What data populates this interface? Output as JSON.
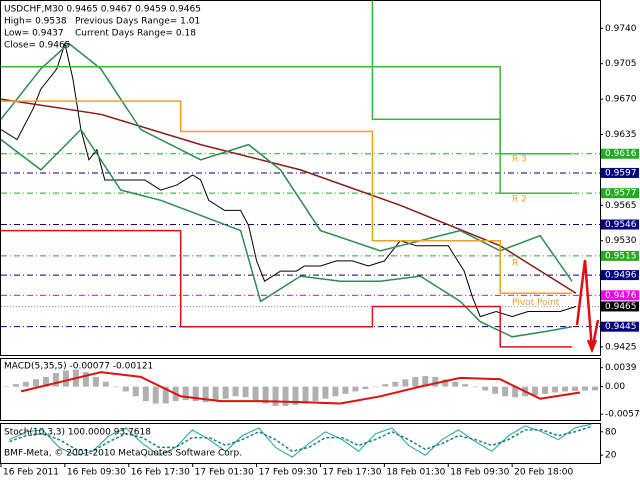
{
  "header": {
    "symbol_line": "USDCHF,M30  0.9465 0.9467 0.9459 0.9465",
    "high": "High= 0.9538",
    "prev_range": "Previous Days Range= 1.01",
    "low": "Low= 0.9437",
    "curr_range": "Current Days Range= 0.18",
    "close": "Close= 0.9465"
  },
  "footer": "BMF-Meta, © 2001-2010 MetaQuotes Software Corp.",
  "chart_data": [
    {
      "type": "line",
      "panel": "main",
      "xlim": [
        0,
        150
      ],
      "ylim": [
        0.9417,
        0.9767
      ],
      "xticks": [
        {
          "value": 0,
          "label": "16 Feb 2011"
        },
        {
          "value": 16,
          "label": "16 Feb 09:30"
        },
        {
          "value": 32,
          "label": "16 Feb 17:30"
        },
        {
          "value": 48,
          "label": "17 Feb 01:30"
        },
        {
          "value": 64,
          "label": "17 Feb 09:30"
        },
        {
          "value": 80,
          "label": "17 Feb 17:30"
        },
        {
          "value": 96,
          "label": "18 Feb 01:30"
        },
        {
          "value": 112,
          "label": "18 Feb 09:30"
        },
        {
          "value": 128,
          "label": "20 Feb 18:00"
        }
      ],
      "yticks": [
        {
          "value": 0.974,
          "label": "0.9740"
        },
        0.9705,
        {
          "value": 0.967,
          "label": "0.9670"
        },
        0.9635,
        0.9565,
        {
          "value": 0.953,
          "label": "0.9530"
        },
        0.9425
      ],
      "series": [
        {
          "color": "#000000",
          "x": [
            0,
            4,
            8,
            10,
            12,
            14,
            16,
            18,
            20,
            22,
            24,
            26,
            28,
            32,
            36,
            40,
            44,
            48,
            50,
            52,
            56,
            60,
            62,
            64,
            66,
            70,
            74,
            76,
            80,
            84,
            88,
            92,
            96,
            100,
            104,
            108,
            112,
            116,
            118,
            120,
            124,
            128,
            132,
            136,
            140,
            144
          ],
          "values": [
            0.964,
            0.963,
            0.966,
            0.968,
            0.969,
            0.97,
            0.9725,
            0.969,
            0.964,
            0.961,
            0.962,
            0.959,
            0.959,
            0.959,
            0.959,
            0.958,
            0.9585,
            0.9595,
            0.959,
            0.957,
            0.956,
            0.956,
            0.9545,
            0.951,
            0.949,
            0.95,
            0.95,
            0.9505,
            0.9505,
            0.951,
            0.951,
            0.9505,
            0.951,
            0.953,
            0.9525,
            0.9525,
            0.9525,
            0.95,
            0.9475,
            0.9455,
            0.946,
            0.9455,
            0.946,
            0.946,
            0.946,
            0.9465
          ]
        },
        {
          "color": "#8b1a1a",
          "x": [
            0,
            25,
            50,
            75,
            100,
            125,
            144
          ],
          "values": [
            0.967,
            0.9655,
            0.9625,
            0.96,
            0.9565,
            0.9525,
            0.9478
          ]
        },
        {
          "color": "#2e8b57",
          "x": [
            0,
            10,
            17,
            25,
            35,
            50,
            62,
            70,
            80,
            95,
            105,
            115,
            125,
            135,
            143
          ],
          "values": [
            0.965,
            0.97,
            0.9725,
            0.97,
            0.964,
            0.961,
            0.9625,
            0.96,
            0.954,
            0.952,
            0.953,
            0.954,
            0.952,
            0.9535,
            0.949
          ]
        },
        {
          "color": "#2e8b57",
          "x": [
            0,
            10,
            20,
            30,
            40,
            50,
            60,
            65,
            75,
            85,
            95,
            105,
            115,
            120,
            128,
            136,
            143
          ],
          "values": [
            0.963,
            0.96,
            0.964,
            0.958,
            0.957,
            0.9555,
            0.954,
            0.947,
            0.9495,
            0.949,
            0.949,
            0.9495,
            0.947,
            0.945,
            0.9435,
            0.944,
            0.9445
          ]
        },
        {
          "color": "#f0a020",
          "x": [
            0,
            45,
            45,
            93,
            93,
            125,
            125,
            143
          ],
          "values": [
            0.9668,
            0.9668,
            0.9638,
            0.9638,
            0.953,
            0.953,
            0.9478,
            0.9478
          ]
        },
        {
          "color": "#33bb33",
          "x": [
            0,
            125,
            125,
            143
          ],
          "values": [
            0.9702,
            0.9702,
            0.9577,
            0.9577
          ]
        },
        {
          "color": "#33bb33",
          "x": [
            93,
            93,
            125,
            125,
            143
          ],
          "values": [
            0.9767,
            0.965,
            0.965,
            0.9616,
            0.9616
          ]
        },
        {
          "color": "#dd1111",
          "x": [
            0,
            45,
            45,
            93,
            93,
            125,
            125,
            143
          ],
          "values": [
            0.954,
            0.954,
            0.9445,
            0.9445,
            0.9465,
            0.9465,
            0.9425,
            0.9425
          ]
        }
      ],
      "levels": [
        {
          "value": 0.9616,
          "color": "#22aa22"
        },
        {
          "value": 0.9597,
          "color": "#000080"
        },
        {
          "value": 0.9577,
          "color": "#22aa22"
        },
        {
          "value": 0.9546,
          "color": "#000080"
        },
        {
          "value": 0.9515,
          "color": "#22aa22"
        },
        {
          "value": 0.9496,
          "color": "#000080"
        },
        {
          "value": 0.9476,
          "color": "#ee00ee"
        },
        {
          "value": 0.9445,
          "color": "#000080"
        }
      ],
      "current": 0.9465,
      "pivot_labels": [
        {
          "label": "R 3",
          "value": 0.9611
        },
        {
          "label": "R 2",
          "value": 0.9571
        },
        {
          "label": "R",
          "value": 0.9508
        },
        {
          "label": "Pivot Point",
          "value": 0.9469
        }
      ]
    },
    {
      "type": "bar",
      "panel": "macd",
      "title": "MACD(5,35,5) -0.00077 -0.00121",
      "ylim": [
        -0.0069,
        0.0057
      ],
      "yticks": [
        0.0039,
        {
          "value": 0,
          "label": "0.00"
        },
        -0.00571
      ],
      "color": "#b0b0b0",
      "values": [
        0,
        0.0005,
        0.001,
        0.0015,
        0.002,
        0.0028,
        0.0033,
        0.0035,
        0.003,
        0.002,
        0.001,
        0,
        -0.001,
        -0.002,
        -0.003,
        -0.0035,
        -0.0035,
        -0.003,
        -0.0028,
        -0.003,
        -0.0032,
        -0.003,
        -0.0025,
        -0.002,
        -0.0022,
        -0.0028,
        -0.0035,
        -0.004,
        -0.004,
        -0.0038,
        -0.0035,
        -0.003,
        -0.0025,
        -0.002,
        -0.0015,
        -0.001,
        -0.0005,
        0,
        0.0005,
        0.001,
        0.0015,
        0.002,
        0.0022,
        0.002,
        0.0015,
        0.001,
        0.0005,
        0,
        -0.0008,
        -0.0015,
        -0.002,
        -0.0022,
        -0.002,
        -0.0018,
        -0.0015,
        -0.0012,
        -0.001,
        -0.0009,
        -0.0008,
        -0.00077
      ],
      "signal": {
        "color": "#dd1111",
        "values": [
          -0.001,
          0.001,
          0.003,
          0.002,
          -0.002,
          -0.003,
          -0.003,
          -0.0032,
          -0.0035,
          -0.002,
          0,
          0.0018,
          0.0015,
          -0.0025,
          -0.00121
        ]
      }
    },
    {
      "type": "line",
      "panel": "stoch",
      "title": "Stoch(10,3,3) 100.0000 93.7618",
      "ylim": [
        0,
        100
      ],
      "yticks": [
        80,
        20
      ],
      "series": [
        {
          "color": "#20a0a0",
          "values": [
            60,
            80,
            85,
            40,
            20,
            30,
            70,
            90,
            50,
            20,
            40,
            85,
            60,
            30,
            70,
            90,
            40,
            15,
            50,
            80,
            60,
            30,
            75,
            90,
            45,
            20,
            60,
            85,
            55,
            30,
            70,
            95,
            80,
            60,
            90,
            100
          ]
        },
        {
          "color": "#208080",
          "dash": true,
          "values": [
            55,
            70,
            75,
            60,
            35,
            30,
            55,
            75,
            65,
            40,
            40,
            65,
            65,
            45,
            60,
            80,
            60,
            30,
            40,
            65,
            65,
            45,
            60,
            80,
            60,
            35,
            50,
            70,
            60,
            45,
            60,
            85,
            85,
            70,
            80,
            94
          ]
        }
      ]
    }
  ]
}
